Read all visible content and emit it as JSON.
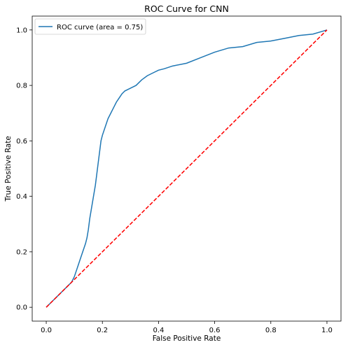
{
  "chart_data": {
    "type": "line",
    "title": "ROC Curve for CNN",
    "xlabel": "False Positive Rate",
    "ylabel": "True Positive Rate",
    "xlim": [
      -0.05,
      1.05
    ],
    "ylim": [
      -0.05,
      1.05
    ],
    "xticks": [
      0.0,
      0.2,
      0.4,
      0.6,
      0.8,
      1.0
    ],
    "yticks": [
      0.0,
      0.2,
      0.4,
      0.6,
      0.8,
      1.0
    ],
    "xtick_labels": [
      "0.0",
      "0.2",
      "0.4",
      "0.6",
      "0.8",
      "1.0"
    ],
    "ytick_labels": [
      "0.0",
      "0.2",
      "0.4",
      "0.6",
      "0.8",
      "1.0"
    ],
    "grid": false,
    "legend_position": "top-left",
    "series": [
      {
        "name": "ROC curve (area = 0.75)",
        "color": "#1f77b4",
        "style": "solid",
        "x": [
          0.0,
          0.02,
          0.04,
          0.06,
          0.08,
          0.09,
          0.1,
          0.11,
          0.12,
          0.13,
          0.14,
          0.145,
          0.15,
          0.155,
          0.16,
          0.165,
          0.17,
          0.175,
          0.18,
          0.185,
          0.19,
          0.195,
          0.2,
          0.21,
          0.22,
          0.23,
          0.24,
          0.25,
          0.26,
          0.27,
          0.28,
          0.29,
          0.3,
          0.32,
          0.34,
          0.36,
          0.38,
          0.4,
          0.42,
          0.45,
          0.5,
          0.55,
          0.6,
          0.65,
          0.7,
          0.75,
          0.8,
          0.85,
          0.9,
          0.95,
          1.0
        ],
        "y": [
          0.0,
          0.02,
          0.04,
          0.06,
          0.08,
          0.09,
          0.11,
          0.14,
          0.17,
          0.2,
          0.23,
          0.25,
          0.28,
          0.32,
          0.35,
          0.38,
          0.41,
          0.44,
          0.48,
          0.52,
          0.56,
          0.6,
          0.62,
          0.65,
          0.68,
          0.7,
          0.72,
          0.74,
          0.755,
          0.77,
          0.78,
          0.785,
          0.79,
          0.8,
          0.82,
          0.835,
          0.845,
          0.855,
          0.86,
          0.87,
          0.88,
          0.9,
          0.92,
          0.935,
          0.94,
          0.955,
          0.96,
          0.97,
          0.98,
          0.985,
          1.0
        ]
      },
      {
        "name": "",
        "color": "#ff0000",
        "style": "dashed",
        "x": [
          0.0,
          1.0
        ],
        "y": [
          0.0,
          1.0
        ]
      }
    ]
  }
}
